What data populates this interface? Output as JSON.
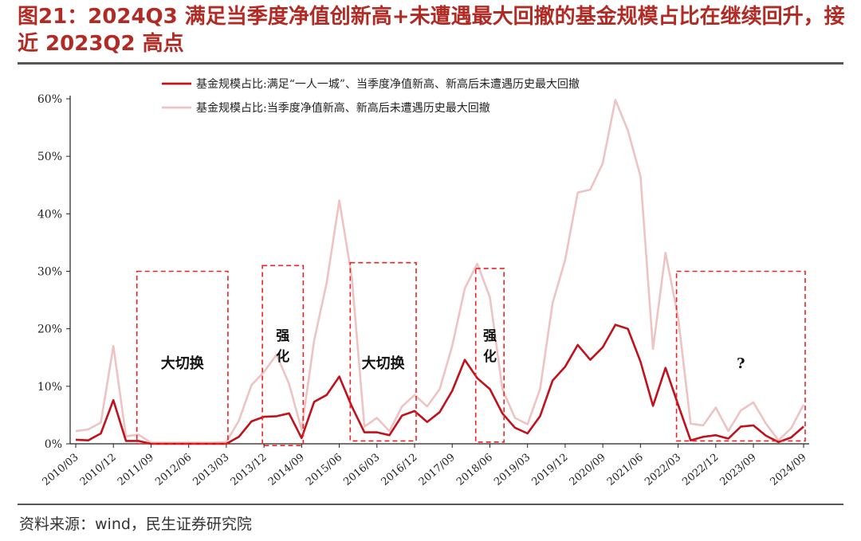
{
  "page": {
    "title": "图21：2024Q3  满足当季度净值创新高+未遭遇最大回撤的基金规模占比在继续回升，接近 2023Q2 高点",
    "source": "资料来源：wind，民生证券研究院"
  },
  "colors": {
    "title": "#b22a24",
    "series_main": "#c0111c",
    "series_light": "#eec3c3",
    "box": "#ee2222",
    "axis": "#222222"
  },
  "chart_data": {
    "type": "line",
    "title": "",
    "xlabel": "",
    "ylabel": "",
    "ylim": [
      0,
      60
    ],
    "yticks": [
      0,
      10,
      20,
      30,
      40,
      50,
      60
    ],
    "ytick_labels": [
      "0%",
      "10%",
      "20%",
      "30%",
      "40%",
      "50%",
      "60%"
    ],
    "grid": false,
    "legend_position": "top",
    "x": [
      "2010/03",
      "2010/06",
      "2010/09",
      "2010/12",
      "2011/03",
      "2011/06",
      "2011/09",
      "2011/12",
      "2012/03",
      "2012/06",
      "2012/09",
      "2012/12",
      "2013/03",
      "2013/06",
      "2013/09",
      "2013/12",
      "2014/03",
      "2014/06",
      "2014/09",
      "2014/12",
      "2015/03",
      "2015/06",
      "2015/09",
      "2015/12",
      "2016/03",
      "2016/06",
      "2016/09",
      "2016/12",
      "2017/03",
      "2017/06",
      "2017/09",
      "2017/12",
      "2018/03",
      "2018/06",
      "2018/09",
      "2018/12",
      "2019/03",
      "2019/06",
      "2019/09",
      "2019/12",
      "2020/03",
      "2020/06",
      "2020/09",
      "2020/12",
      "2021/03",
      "2021/06",
      "2021/09",
      "2021/12",
      "2022/03",
      "2022/06",
      "2022/09",
      "2022/12",
      "2023/03",
      "2023/06",
      "2023/09",
      "2023/12",
      "2024/03",
      "2024/06",
      "2024/09"
    ],
    "x_tick_labels": [
      "2010/03",
      "2010/12",
      "2011/09",
      "2012/06",
      "2013/03",
      "2013/12",
      "2014/09",
      "2015/06",
      "2016/03",
      "2016/12",
      "2017/09",
      "2018/06",
      "2019/03",
      "2019/12",
      "2020/09",
      "2021/06",
      "2022/03",
      "2022/12",
      "2023/09",
      "2024/09"
    ],
    "series": [
      {
        "name": "基金规模占比:满足“一人一城”、当季度净值新高、新高后未遭遇历史最大回撤",
        "color": "#c0111c",
        "values": [
          0.7,
          0.6,
          1.8,
          7.6,
          0.5,
          0.5,
          0,
          0,
          0,
          0,
          0,
          0,
          0,
          1.2,
          3.9,
          4.7,
          4.8,
          5.3,
          1.0,
          7.3,
          8.5,
          11.7,
          6.5,
          2.0,
          2.0,
          1.5,
          4.9,
          5.7,
          3.8,
          5.5,
          9.2,
          14.6,
          11.4,
          9.5,
          5.3,
          2.8,
          1.8,
          4.8,
          11.0,
          13.4,
          17.2,
          14.6,
          16.8,
          20.7,
          20.0,
          14.3,
          6.6,
          13.2,
          6.8,
          0.6,
          1.2,
          1.5,
          0.9,
          3.0,
          3.2,
          1.4,
          0.3,
          1.1,
          3.0
        ]
      },
      {
        "name": "基金规模占比:当季度净值新高、新高后未遭遇历史最大回撤",
        "color": "#eec3c3",
        "values": [
          2.2,
          2.5,
          3.7,
          17.0,
          1.3,
          1.6,
          0.2,
          0.2,
          0.2,
          0.2,
          0.2,
          0.2,
          0.3,
          4.0,
          10.2,
          12.5,
          15.5,
          10.4,
          2.5,
          18.0,
          28.0,
          42.3,
          29.0,
          3.0,
          4.5,
          2.2,
          6.5,
          8.5,
          6.5,
          9.5,
          17.0,
          27.0,
          31.3,
          25.5,
          9.5,
          4.5,
          3.4,
          9.5,
          24.5,
          32.0,
          43.7,
          44.2,
          48.8,
          59.8,
          54.5,
          46.5,
          16.5,
          33.2,
          22.0,
          3.5,
          3.2,
          6.3,
          2.2,
          5.8,
          7.2,
          3.5,
          0.6,
          2.7,
          6.8
        ]
      }
    ],
    "annotations": [
      {
        "text": "大切换",
        "from": "2011/06",
        "to": "2013/03",
        "y_from": 0,
        "y_to": 30
      },
      {
        "text": "强化",
        "from": "2013/12",
        "to": "2014/09",
        "y_from": -0.3,
        "y_to": 31
      },
      {
        "text": "大切换",
        "from": "2015/09",
        "to": "2016/12",
        "y_from": 0.5,
        "y_to": 31.5
      },
      {
        "text": "强化",
        "from": "2018/03",
        "to": "2018/09",
        "y_from": 0.3,
        "y_to": 30.5
      },
      {
        "text": "?",
        "from": "2022/03",
        "to": "2024/09",
        "y_from": 0.5,
        "y_to": 30
      }
    ]
  }
}
